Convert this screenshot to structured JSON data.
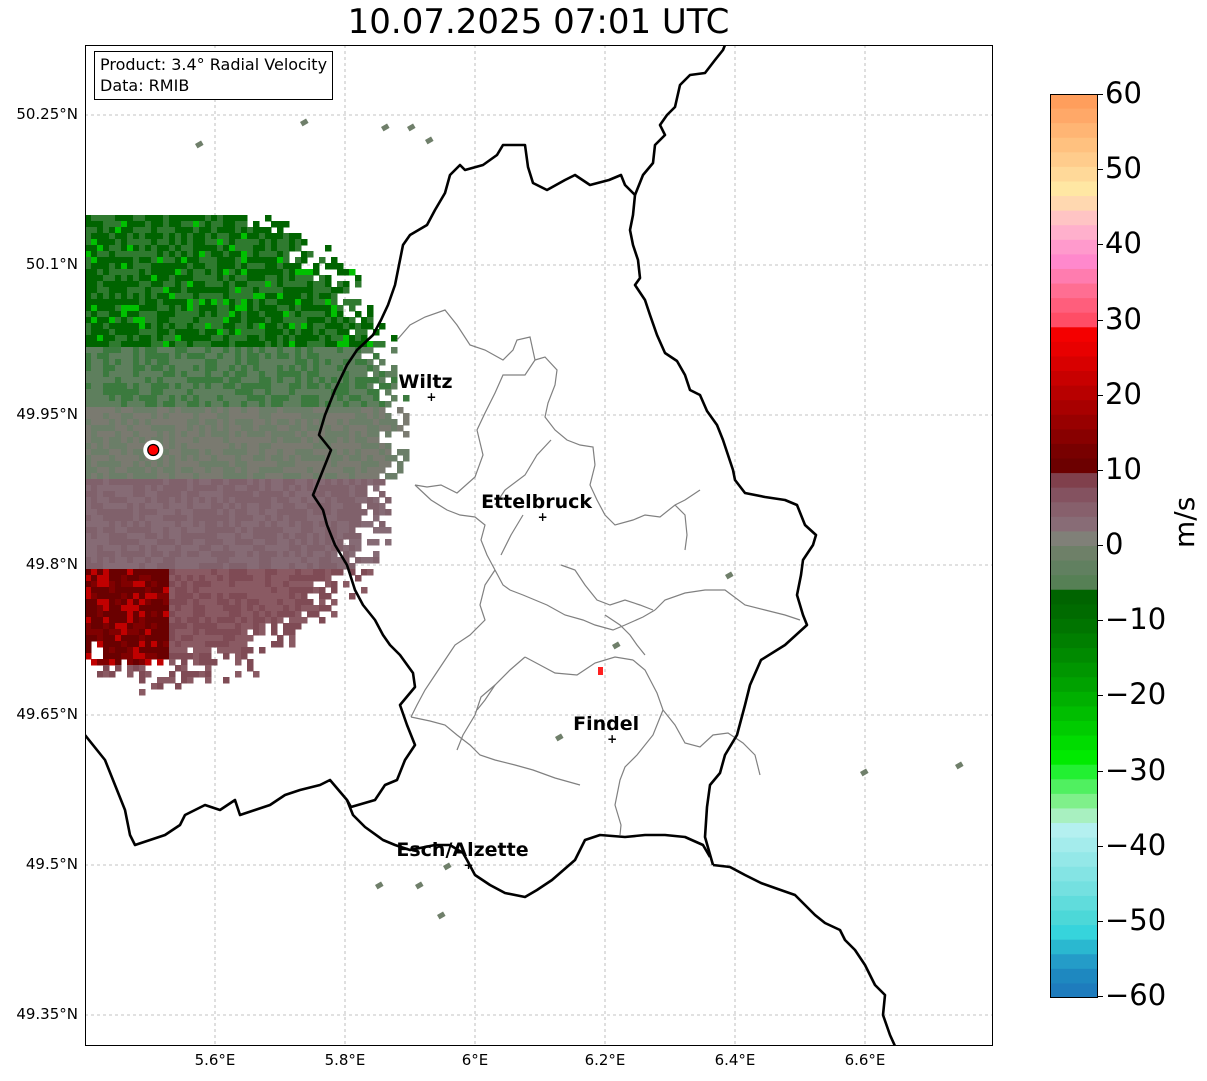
{
  "title": "10.07.2025 07:01 UTC",
  "info": {
    "product": "Product: 3.4° Radial Velocity",
    "data": "Data: RMIB"
  },
  "map": {
    "lon_range": [
      5.4,
      6.8
    ],
    "lat_range": [
      49.32,
      50.32
    ],
    "x_ticks": [
      {
        "value": 5.6,
        "label": "5.6°E"
      },
      {
        "value": 5.8,
        "label": "5.8°E"
      },
      {
        "value": 6.0,
        "label": "6°E"
      },
      {
        "value": 6.2,
        "label": "6.2°E"
      },
      {
        "value": 6.4,
        "label": "6.4°E"
      },
      {
        "value": 6.6,
        "label": "6.6°E"
      }
    ],
    "y_ticks": [
      {
        "value": 50.25,
        "label": "50.25°N"
      },
      {
        "value": 50.1,
        "label": "50.1°N"
      },
      {
        "value": 49.95,
        "label": "49.95°N"
      },
      {
        "value": 49.8,
        "label": "49.8°N"
      },
      {
        "value": 49.65,
        "label": "49.65°N"
      },
      {
        "value": 49.5,
        "label": "49.5°N"
      },
      {
        "value": 49.35,
        "label": "49.35°N"
      }
    ],
    "grid": true,
    "radar_site": {
      "lon": 5.505,
      "lat": 49.915
    },
    "cities": [
      {
        "name": "Wiltz",
        "lon": 5.933,
        "lat": 49.968
      },
      {
        "name": "Ettelbruck",
        "lon": 6.104,
        "lat": 49.848
      },
      {
        "name": "Findel",
        "lon": 6.211,
        "lat": 49.626
      },
      {
        "name": "Esch/Alzette",
        "lon": 5.99,
        "lat": 49.5
      }
    ]
  },
  "colorbar": {
    "min": -60,
    "max": 60,
    "label": "m/s",
    "ticks": [
      {
        "value": 60,
        "label": "60"
      },
      {
        "value": 50,
        "label": "50"
      },
      {
        "value": 40,
        "label": "40"
      },
      {
        "value": 30,
        "label": "30"
      },
      {
        "value": 20,
        "label": "20"
      },
      {
        "value": 10,
        "label": "10"
      },
      {
        "value": 0,
        "label": "0"
      },
      {
        "value": -10,
        "label": "−10"
      },
      {
        "value": -20,
        "label": "−20"
      },
      {
        "value": -30,
        "label": "−30"
      },
      {
        "value": -40,
        "label": "−40"
      },
      {
        "value": -50,
        "label": "−50"
      },
      {
        "value": -60,
        "label": "−60"
      }
    ],
    "colors_top_to_bottom": [
      "#ff9e5c",
      "#ffa868",
      "#ffb574",
      "#ffc17f",
      "#ffcc8c",
      "#ffd999",
      "#ffe7a3",
      "#ffd8b0",
      "#ffc4c4",
      "#ffb0cc",
      "#ff9acc",
      "#ff88cc",
      "#ff7caf",
      "#ff6e92",
      "#ff5e7c",
      "#ff4d66",
      "#f40000",
      "#e80000",
      "#d80000",
      "#c80000",
      "#b80000",
      "#a80000",
      "#980000",
      "#880000",
      "#780000",
      "#6c0000",
      "#80404c",
      "#845260",
      "#87606c",
      "#886c76",
      "#808078",
      "#6e8068",
      "#618060",
      "#568055",
      "#006400",
      "#006b00",
      "#007400",
      "#007f00",
      "#008a00",
      "#009600",
      "#00a200",
      "#00b000",
      "#00be00",
      "#00cc00",
      "#00dc00",
      "#00ea00",
      "#22f032",
      "#50f060",
      "#7ff08a",
      "#a8f0c0",
      "#b4f0f0",
      "#a4ecec",
      "#94e8e8",
      "#84e4e4",
      "#74e0e0",
      "#60dcdc",
      "#4cd8d8",
      "#36d4dc",
      "#2ab8d0",
      "#249cc8",
      "#1e88c0",
      "#1e7cbd"
    ]
  }
}
